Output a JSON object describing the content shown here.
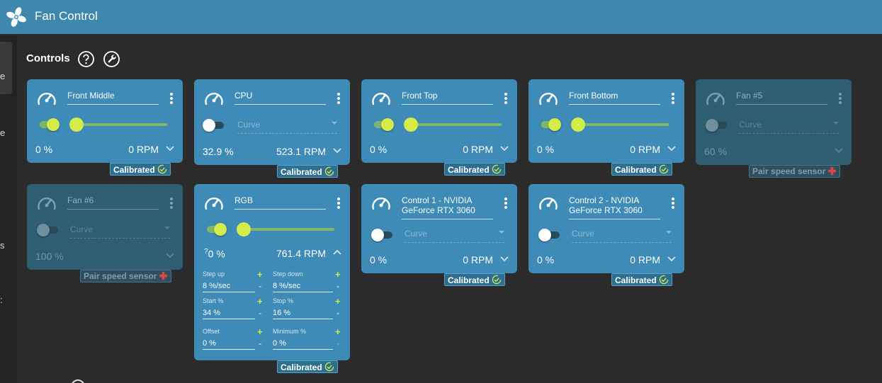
{
  "app": {
    "title": "Fan Control",
    "logo_icon": "fan-icon"
  },
  "sidebar": {
    "fragments": [
      "e",
      "e",
      "s",
      ":"
    ]
  },
  "header": {
    "title": "Controls",
    "help_icon": "question-circle-icon",
    "settings_icon": "wrench-icon"
  },
  "colors": {
    "titlebar": "#3e87ad",
    "card": "#3d8bb6",
    "card_disabled": "#2f5d72",
    "accent": "#d4ec4a",
    "background": "#2b2b2b"
  },
  "cards": [
    {
      "name": "Front Middle",
      "mode": "slider",
      "enabled": true,
      "percent": "0 %",
      "rpm": "0 RPM",
      "slider_value": 0,
      "badge": "Calibrated"
    },
    {
      "name": "CPU",
      "mode": "curve",
      "enabled": false,
      "curve": "Curve",
      "percent": "32.9 %",
      "rpm": "523.1 RPM",
      "badge": "Calibrated"
    },
    {
      "name": "Front Top",
      "mode": "slider",
      "enabled": true,
      "percent": "0 %",
      "rpm": "0 RPM",
      "slider_value": 0,
      "badge": "Calibrated"
    },
    {
      "name": "Front Bottom",
      "mode": "slider",
      "enabled": true,
      "percent": "0 %",
      "rpm": "0 RPM",
      "slider_value": 0,
      "badge": "Calibrated"
    },
    {
      "name": "Fan #5",
      "mode": "curve",
      "enabled": false,
      "curve": "Curve",
      "percent": "60 %",
      "rpm": "",
      "badge": "Pair speed sensor",
      "disabled": true
    },
    {
      "name": "Fan #6",
      "mode": "curve",
      "enabled": false,
      "curve": "Curve",
      "percent": "100 %",
      "rpm": "",
      "badge": "Pair speed sensor",
      "disabled": true
    },
    {
      "name": "RGB",
      "mode": "slider",
      "enabled": true,
      "percent_prefix": "?",
      "percent": "0 %",
      "rpm": "761.4 RPM",
      "slider_value": 0,
      "badge": "Calibrated",
      "fields": {
        "step_up_label": "Step up",
        "step_up": "8 %/sec",
        "step_down_label": "Step down",
        "step_down": "8 %/sec",
        "start_label": "Start %",
        "start": "34 %",
        "stop_label": "Stop %",
        "stop": "16 %",
        "offset_label": "Offset",
        "offset": "0 %",
        "minimum_label": "Minimum %",
        "minimum": "0 %",
        "plus": "+",
        "minus": "-"
      }
    },
    {
      "name": "Control 1 - NVIDIA GeForce RTX 3060",
      "mode": "curve",
      "enabled": false,
      "curve": "Curve",
      "percent": "0 %",
      "rpm": "0 RPM",
      "badge": "Calibrated"
    },
    {
      "name": "Control 2 - NVIDIA GeForce RTX 3060",
      "mode": "curve",
      "enabled": false,
      "curve": "Curve",
      "percent": "0 %",
      "rpm": "0 RPM",
      "badge": "Calibrated"
    }
  ]
}
